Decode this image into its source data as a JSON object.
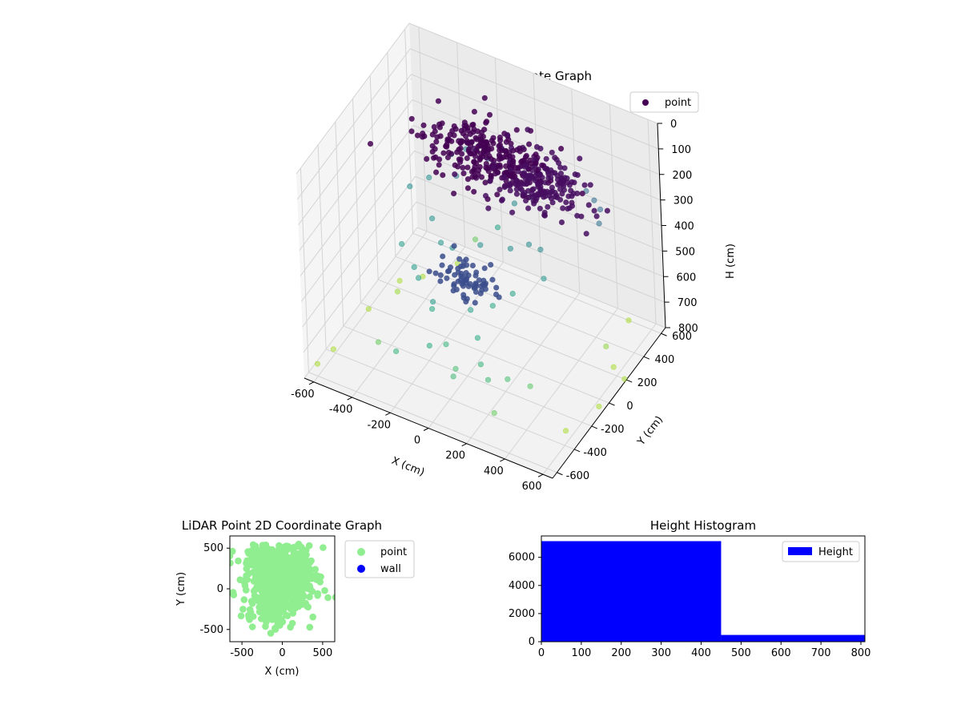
{
  "figure": {
    "background": "#ffffff"
  },
  "chart_data": [
    {
      "id": "scatter3d",
      "type": "scatter",
      "projection": "3d",
      "title": "LiDAR Point 3D Coordinate Graph",
      "xlabel": "X (cm)",
      "ylabel": "Y (cm)",
      "zlabel": "H (cm)",
      "xlim": [
        -650,
        650
      ],
      "ylim": [
        -650,
        650
      ],
      "zlim": [
        0,
        800
      ],
      "z_inverted": true,
      "xticks": [
        -600,
        -400,
        -200,
        0,
        200,
        400,
        600
      ],
      "yticks": [
        -600,
        -400,
        -200,
        0,
        200,
        400,
        600
      ],
      "zticks": [
        0,
        100,
        200,
        300,
        400,
        500,
        600,
        700,
        800
      ],
      "colormap": "viridis",
      "legend": {
        "position": "upper-right",
        "entries": [
          {
            "label": "point",
            "color": "#440154"
          }
        ]
      },
      "grid": true,
      "series": [
        {
          "name": "point",
          "clusters": [
            {
              "center": [
                -150,
                400,
                250
              ],
              "spread": [
                160,
                90,
                40
              ],
              "count": 260,
              "color": "#440154"
            },
            {
              "center": [
                120,
                380,
                260
              ],
              "spread": [
                140,
                90,
                35
              ],
              "count": 200,
              "color": "#470e60"
            },
            {
              "center": [
                -60,
                -40,
                500
              ],
              "spread": [
                70,
                45,
                30
              ],
              "count": 70,
              "color": "#3b4d8c"
            }
          ],
          "points": [
            [
              -600,
              -20,
              800
            ],
            [
              -560,
              250,
              800
            ],
            [
              -480,
              340,
              800
            ],
            [
              -380,
              520,
              800
            ],
            [
              -300,
              560,
              700
            ],
            [
              -520,
              140,
              780
            ],
            [
              -620,
              -380,
              800
            ],
            [
              -640,
              -520,
              800
            ],
            [
              560,
              250,
              800
            ],
            [
              620,
              -50,
              800
            ],
            [
              640,
              200,
              800
            ],
            [
              480,
              600,
              800
            ],
            [
              300,
              -540,
              700
            ],
            [
              -520,
              320,
              450
            ],
            [
              -470,
              430,
              450
            ],
            [
              -410,
              560,
              400
            ],
            [
              -350,
              600,
              380
            ],
            [
              -200,
              530,
              340
            ],
            [
              -160,
              600,
              320
            ],
            [
              300,
              560,
              330
            ],
            [
              360,
              520,
              330
            ],
            [
              420,
              460,
              320
            ],
            [
              450,
              380,
              330
            ],
            [
              -250,
              80,
              480
            ],
            [
              -180,
              60,
              470
            ],
            [
              -60,
              120,
              450
            ],
            [
              80,
              160,
              440
            ],
            [
              150,
              220,
              430
            ],
            [
              -300,
              -120,
              500
            ],
            [
              -250,
              -180,
              500
            ],
            [
              -120,
              -300,
              500
            ],
            [
              40,
              -220,
              520
            ],
            [
              120,
              -320,
              560
            ],
            [
              180,
              -420,
              600
            ],
            [
              240,
              -470,
              620
            ],
            [
              300,
              -380,
              640
            ],
            [
              380,
              -300,
              680
            ],
            [
              -50,
              -500,
              560
            ],
            [
              90,
              -540,
              620
            ],
            [
              -200,
              -560,
              600
            ],
            [
              220,
              200,
              420
            ],
            [
              280,
              100,
              470
            ],
            [
              -420,
              0,
              500
            ],
            [
              -350,
              200,
              470
            ],
            [
              500,
              300,
              760
            ],
            [
              560,
              -300,
              800
            ],
            [
              -100,
              400,
              520
            ],
            [
              -40,
              470,
              440
            ],
            [
              20,
              520,
              420
            ],
            [
              -300,
              380,
              370
            ],
            [
              100,
              -100,
              540
            ],
            [
              160,
              0,
              520
            ],
            [
              -150,
              -250,
              560
            ],
            [
              -20,
              -380,
              600
            ],
            [
              60,
              -450,
              640
            ],
            [
              -380,
              -380,
              700
            ]
          ]
        }
      ]
    },
    {
      "id": "scatter2d",
      "type": "scatter",
      "title": "LiDAR Point 2D Coordinate Graph",
      "xlabel": "X (cm)",
      "ylabel": "Y (cm)",
      "xlim": [
        -650,
        650
      ],
      "ylim": [
        -650,
        650
      ],
      "xticks": [
        -500,
        0,
        500
      ],
      "yticks": [
        -500,
        0,
        500
      ],
      "legend": {
        "position": "outside-right",
        "entries": [
          {
            "label": "point",
            "color": "#90ee90"
          },
          {
            "label": "wall",
            "color": "#0000ff"
          }
        ]
      },
      "series": [
        {
          "name": "point",
          "color": "#90ee90",
          "clusters": [
            {
              "center": [
                -150,
                300
              ],
              "spread": [
                220,
                180
              ],
              "count": 320
            },
            {
              "center": [
                100,
                200
              ],
              "spread": [
                200,
                200
              ],
              "count": 220
            },
            {
              "center": [
                -100,
                -150
              ],
              "spread": [
                200,
                250
              ],
              "count": 180
            },
            {
              "center": [
                0,
                0
              ],
              "spread": [
                420,
                420
              ],
              "count": 140
            }
          ]
        },
        {
          "name": "wall",
          "color": "#0000ff",
          "points": []
        }
      ]
    },
    {
      "id": "histogram",
      "type": "bar",
      "title": "Height Histogram",
      "xlabel": "",
      "ylabel": "",
      "xlim": [
        0,
        810
      ],
      "ylim": [
        0,
        7520
      ],
      "xticks": [
        0,
        100,
        200,
        300,
        400,
        500,
        600,
        700,
        800
      ],
      "yticks": [
        0,
        2000,
        4000,
        6000
      ],
      "legend": {
        "position": "upper-right",
        "entries": [
          {
            "label": "Height",
            "color": "#0000ff"
          }
        ]
      },
      "bins": [
        {
          "start": 0,
          "end": 450,
          "count": 7150
        },
        {
          "start": 450,
          "end": 810,
          "count": 480
        }
      ],
      "color": "#0000ff"
    }
  ]
}
